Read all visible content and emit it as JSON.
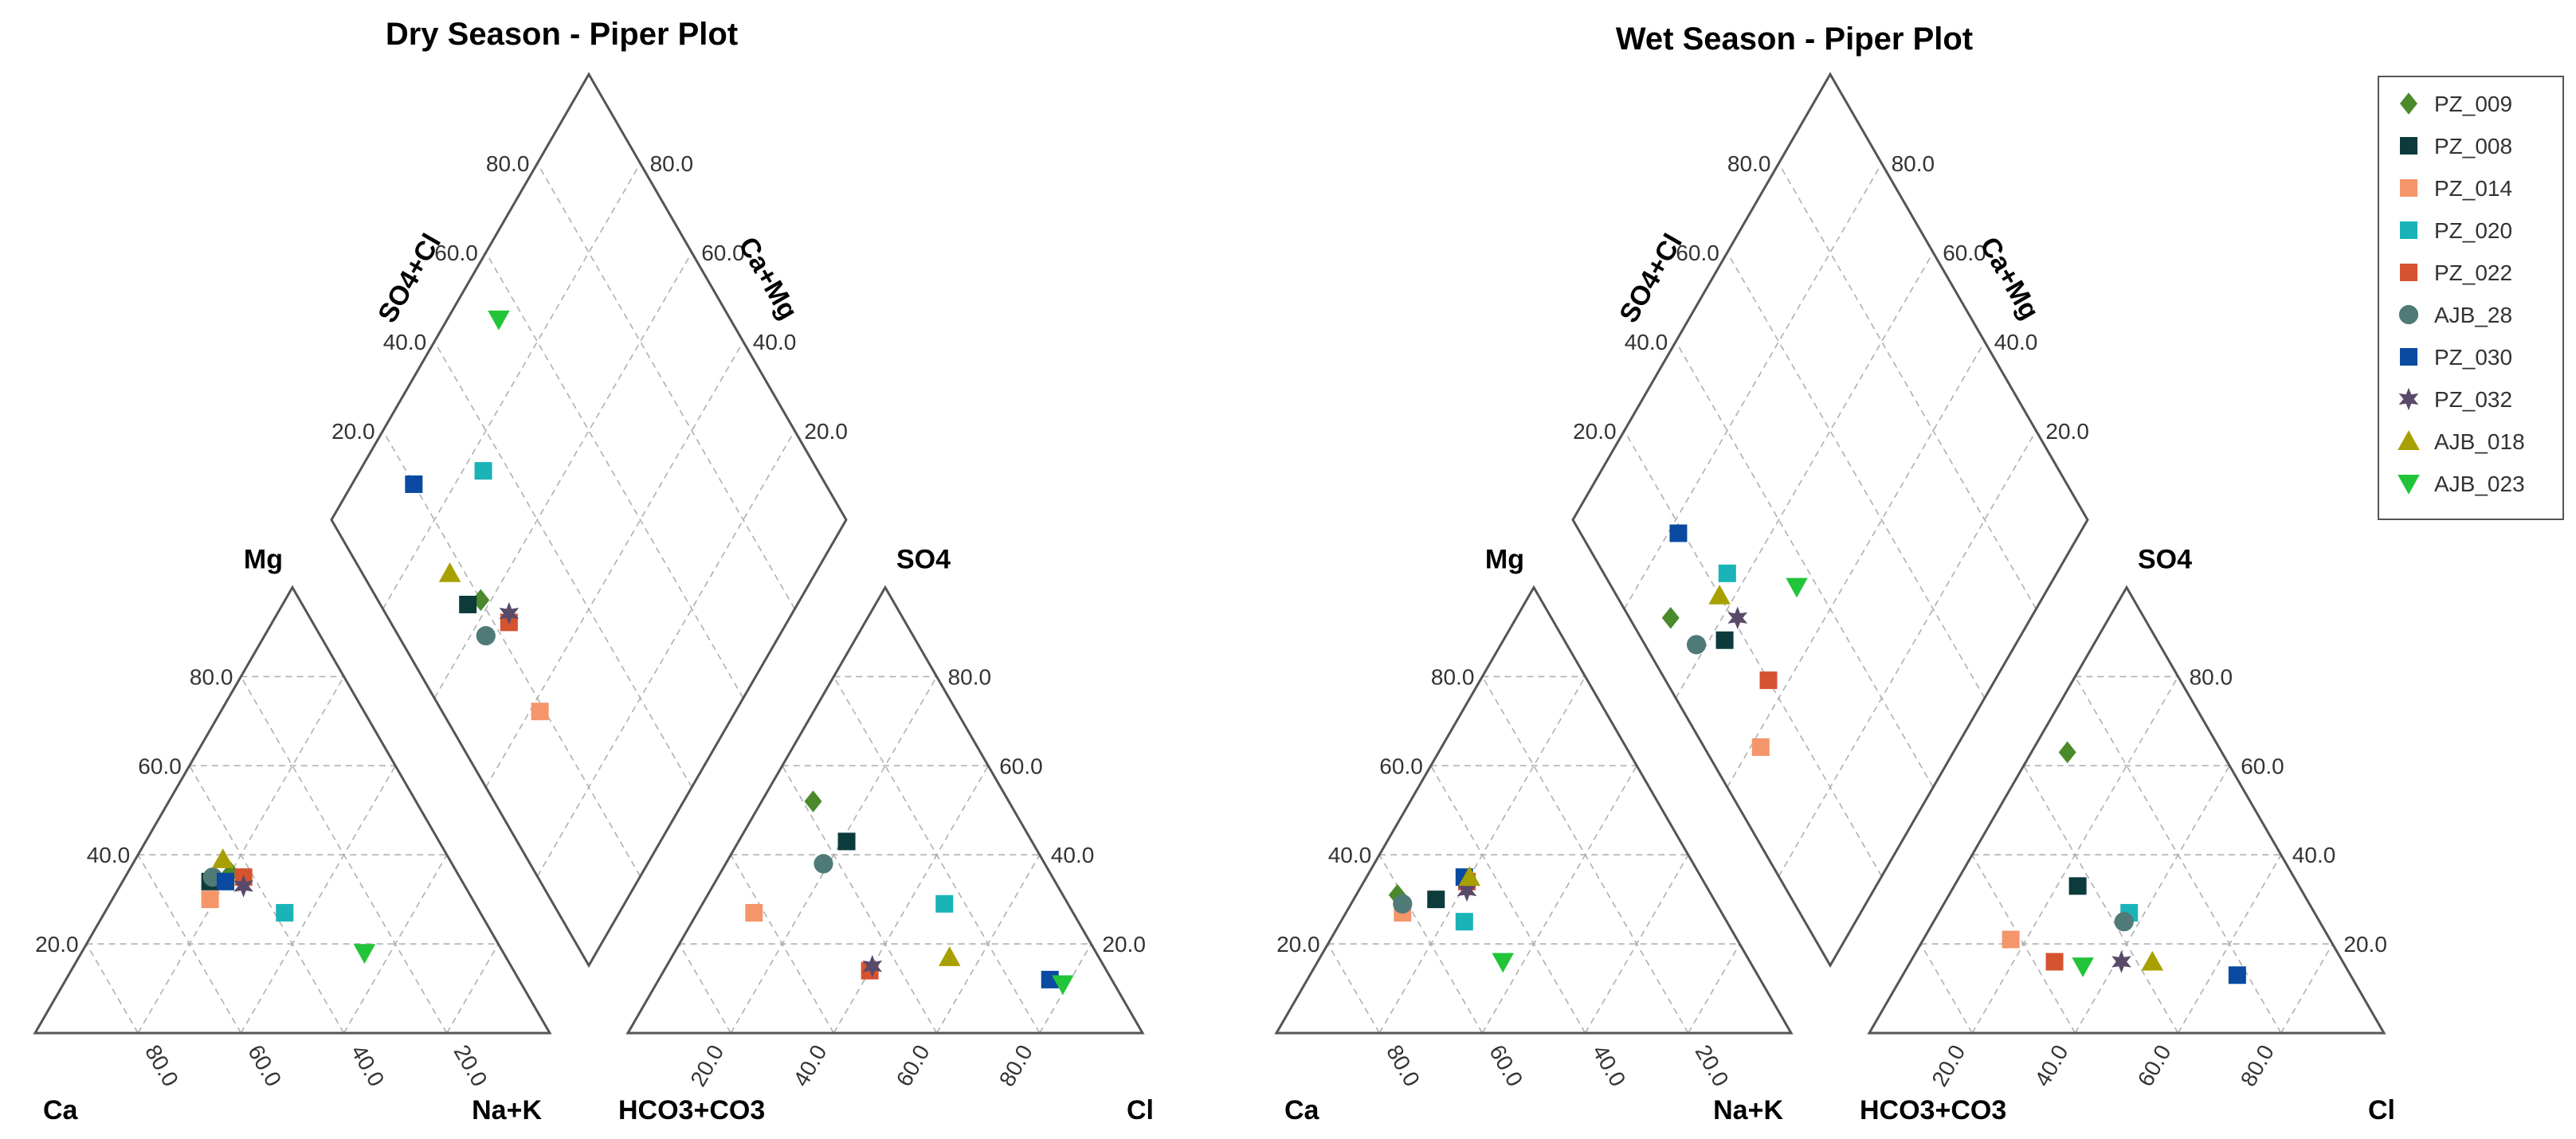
{
  "chart_data": {
    "type": "piper",
    "legend": {
      "placement": "top-right",
      "entries": [
        {
          "name": "PZ_009",
          "marker": "diamond",
          "color": "#4a8a2a"
        },
        {
          "name": "PZ_008",
          "marker": "square",
          "color": "#0d3b3b"
        },
        {
          "name": "PZ_014",
          "marker": "square",
          "color": "#f4956a"
        },
        {
          "name": "PZ_020",
          "marker": "square",
          "color": "#1ab3b8"
        },
        {
          "name": "PZ_022",
          "marker": "square",
          "color": "#d65330"
        },
        {
          "name": "AJB_28",
          "marker": "circle",
          "color": "#4f7a78"
        },
        {
          "name": "PZ_030",
          "marker": "square",
          "color": "#0a4aa0"
        },
        {
          "name": "PZ_032",
          "marker": "star",
          "color": "#5a4a6a"
        },
        {
          "name": "AJB_018",
          "marker": "triangle-up",
          "color": "#a8a000"
        },
        {
          "name": "AJB_023",
          "marker": "triangle-down",
          "color": "#22c43a"
        }
      ]
    },
    "tick_values": [
      20,
      40,
      60,
      80
    ],
    "tick_labels": [
      "20.0",
      "40.0",
      "60.0",
      "80.0"
    ],
    "plots": [
      {
        "title": "Dry Season - Piper Plot",
        "labels": {
          "cation_left": "Ca",
          "cation_right": "Na+K",
          "cation_top": "Mg",
          "anion_left": "HCO3+CO3",
          "anion_right": "Cl",
          "anion_top": "SO4",
          "diamond_left": "SO4+Cl",
          "diamond_right": "Ca+Mg"
        },
        "samples": [
          {
            "name": "PZ_009",
            "cation": {
              "ca": 44,
              "mg": 36,
              "nak": 20
            },
            "anion": {
              "hco3": 38,
              "cl": 10,
              "so4": 52
            }
          },
          {
            "name": "PZ_008",
            "cation": {
              "ca": 49,
              "mg": 34,
              "nak": 17
            },
            "anion": {
              "hco3": 36,
              "cl": 21,
              "so4": 43
            }
          },
          {
            "name": "PZ_014",
            "cation": {
              "ca": 51,
              "mg": 30,
              "nak": 19
            },
            "anion": {
              "hco3": 62,
              "cl": 11,
              "so4": 27
            }
          },
          {
            "name": "PZ_020",
            "cation": {
              "ca": 38,
              "mg": 27,
              "nak": 35
            },
            "anion": {
              "hco3": 24,
              "cl": 47,
              "so4": 29
            }
          },
          {
            "name": "PZ_022",
            "cation": {
              "ca": 42,
              "mg": 35,
              "nak": 23
            },
            "anion": {
              "hco3": 46,
              "cl": 40,
              "so4": 14
            }
          },
          {
            "name": "AJB_28",
            "cation": {
              "ca": 48,
              "mg": 35,
              "nak": 17
            },
            "anion": {
              "hco3": 43,
              "cl": 19,
              "so4": 38
            }
          },
          {
            "name": "PZ_030",
            "cation": {
              "ca": 46,
              "mg": 34,
              "nak": 20
            },
            "anion": {
              "hco3": 12,
              "cl": 76,
              "so4": 12
            }
          },
          {
            "name": "PZ_032",
            "cation": {
              "ca": 43,
              "mg": 33,
              "nak": 24
            },
            "anion": {
              "hco3": 45,
              "cl": 40,
              "so4": 15
            }
          },
          {
            "name": "AJB_018",
            "cation": {
              "ca": 44,
              "mg": 39,
              "nak": 17
            },
            "anion": {
              "hco3": 29,
              "cl": 54,
              "so4": 17
            }
          },
          {
            "name": "AJB_023",
            "cation": {
              "ca": 27,
              "mg": 18,
              "nak": 55
            },
            "anion": {
              "hco3": 10,
              "cl": 79,
              "so4": 11
            }
          }
        ]
      },
      {
        "title": "Wet Season - Piper Plot",
        "labels": {
          "cation_left": "Ca",
          "cation_right": "Na+K",
          "cation_top": "Mg",
          "anion_left": "HCO3+CO3",
          "anion_right": "Cl",
          "anion_top": "SO4",
          "diamond_left": "SO4+Cl",
          "diamond_right": "Ca+Mg"
        },
        "samples": [
          {
            "name": "PZ_009",
            "cation": {
              "ca": 61,
              "mg": 31,
              "nak": 8
            },
            "anion": {
              "hco3": 30,
              "cl": 7,
              "so4": 63
            }
          },
          {
            "name": "PZ_008",
            "cation": {
              "ca": 54,
              "mg": 30,
              "nak": 16
            },
            "anion": {
              "hco3": 43,
              "cl": 24,
              "so4": 33
            }
          },
          {
            "name": "PZ_014",
            "cation": {
              "ca": 62,
              "mg": 27,
              "nak": 11
            },
            "anion": {
              "hco3": 62,
              "cl": 17,
              "so4": 21
            }
          },
          {
            "name": "PZ_020",
            "cation": {
              "ca": 51,
              "mg": 25,
              "nak": 24
            },
            "anion": {
              "hco3": 36,
              "cl": 37,
              "so4": 27
            }
          },
          {
            "name": "PZ_022",
            "cation": {
              "ca": 46,
              "mg": 34,
              "nak": 20
            },
            "anion": {
              "hco3": 56,
              "cl": 28,
              "so4": 16
            }
          },
          {
            "name": "AJB_28",
            "cation": {
              "ca": 61,
              "mg": 29,
              "nak": 10
            },
            "anion": {
              "hco3": 38,
              "cl": 37,
              "so4": 25
            }
          },
          {
            "name": "PZ_030",
            "cation": {
              "ca": 46,
              "mg": 35,
              "nak": 19
            },
            "anion": {
              "hco3": 22,
              "cl": 65,
              "so4": 13
            }
          },
          {
            "name": "PZ_032",
            "cation": {
              "ca": 47,
              "mg": 32,
              "nak": 21
            },
            "anion": {
              "hco3": 43,
              "cl": 41,
              "so4": 16
            }
          },
          {
            "name": "AJB_018",
            "cation": {
              "ca": 45,
              "mg": 35,
              "nak": 20
            },
            "anion": {
              "hco3": 37,
              "cl": 47,
              "so4": 16
            }
          },
          {
            "name": "AJB_023",
            "cation": {
              "ca": 48,
              "mg": 16,
              "nak": 36
            },
            "anion": {
              "hco3": 51,
              "cl": 34,
              "so4": 15
            }
          }
        ]
      }
    ]
  }
}
